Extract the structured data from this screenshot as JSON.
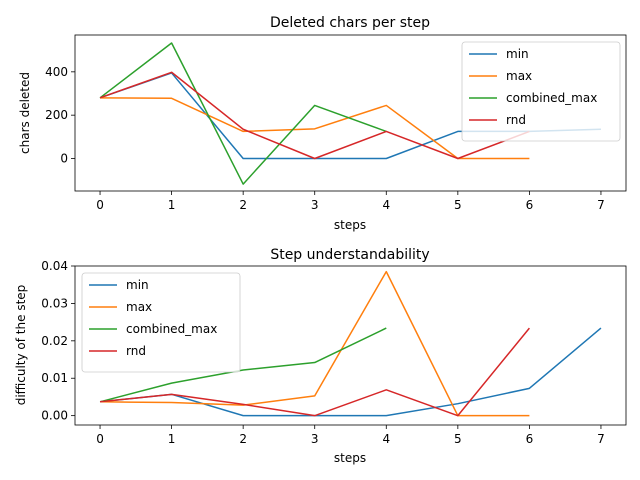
{
  "chart_data": [
    {
      "type": "line",
      "title": "Deleted chars per step",
      "xlabel": "steps",
      "ylabel": "chars deleted",
      "xlim": [
        -0.35,
        7.35
      ],
      "ylim": [
        -150,
        570
      ],
      "xticks": [
        0,
        1,
        2,
        3,
        4,
        5,
        6,
        7
      ],
      "yticks": [
        0,
        200,
        400
      ],
      "legend": "top-right",
      "series": [
        {
          "name": "min",
          "color": "#1f77b4",
          "x": [
            0,
            1,
            2,
            3,
            4,
            5,
            6,
            7
          ],
          "y": [
            280,
            395,
            0,
            0,
            0,
            125,
            125,
            135
          ]
        },
        {
          "name": "max",
          "color": "#ff7f0e",
          "x": [
            0,
            1,
            2,
            3,
            4,
            5,
            6
          ],
          "y": [
            280,
            278,
            125,
            137,
            245,
            0,
            0
          ]
        },
        {
          "name": "combined_max",
          "color": "#2ca02c",
          "x": [
            0,
            1,
            2,
            3,
            4
          ],
          "y": [
            280,
            533,
            -118,
            245,
            125
          ]
        },
        {
          "name": "rnd",
          "color": "#d62728",
          "x": [
            0,
            1,
            2,
            3,
            4,
            5,
            6
          ],
          "y": [
            280,
            398,
            135,
            0,
            125,
            0,
            125
          ]
        }
      ]
    },
    {
      "type": "line",
      "title": "Step understandability",
      "xlabel": "steps",
      "ylabel": "difficulty of the step",
      "xlim": [
        -0.35,
        7.35
      ],
      "ylim": [
        -0.0025,
        0.04
      ],
      "xticks": [
        0,
        1,
        2,
        3,
        4,
        5,
        6,
        7
      ],
      "yticks": [
        "0.00",
        "0.01",
        "0.02",
        "0.03",
        "0.04"
      ],
      "legend": "top-left",
      "series": [
        {
          "name": "min",
          "color": "#1f77b4",
          "x": [
            0,
            1,
            2,
            3,
            4,
            5,
            6,
            7
          ],
          "y": [
            0.0037,
            0.0057,
            0.0,
            0.0,
            0.0,
            0.0032,
            0.0073,
            0.0234
          ]
        },
        {
          "name": "max",
          "color": "#ff7f0e",
          "x": [
            0,
            1,
            2,
            3,
            4,
            5,
            6
          ],
          "y": [
            0.0037,
            0.0035,
            0.0028,
            0.0053,
            0.0385,
            0.0,
            0.0
          ]
        },
        {
          "name": "combined_max",
          "color": "#2ca02c",
          "x": [
            0,
            1,
            2,
            3,
            4
          ],
          "y": [
            0.0037,
            0.0087,
            0.0122,
            0.0142,
            0.0234
          ]
        },
        {
          "name": "rnd",
          "color": "#d62728",
          "x": [
            0,
            1,
            2,
            3,
            4,
            5,
            6
          ],
          "y": [
            0.0037,
            0.0057,
            0.003,
            0.0,
            0.0069,
            0.0,
            0.0234
          ]
        }
      ]
    }
  ]
}
